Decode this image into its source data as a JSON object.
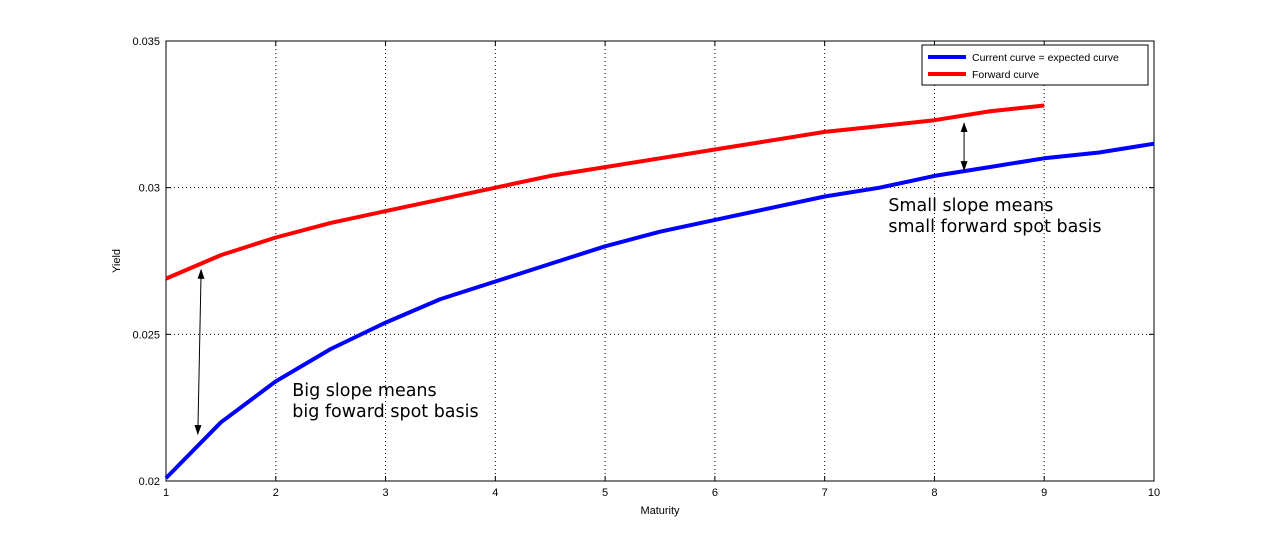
{
  "chart_data": {
    "type": "line",
    "title": "",
    "xlabel": "Maturity",
    "ylabel": "Yield",
    "xlim": [
      1,
      10
    ],
    "ylim": [
      0.02,
      0.035
    ],
    "xticks": [
      1,
      2,
      3,
      4,
      5,
      6,
      7,
      8,
      9,
      10
    ],
    "xtick_labels": [
      "1",
      "2",
      "3",
      "4",
      "5",
      "6",
      "7",
      "8",
      "9",
      "10"
    ],
    "yticks": [
      0.02,
      0.025,
      0.03,
      0.035
    ],
    "ytick_labels": [
      "0.02",
      "0.025",
      "0.03",
      "0.035"
    ],
    "grid": true,
    "legend_position": "top-right",
    "series": [
      {
        "name": "Current curve = expected curve",
        "color": "#0000ff",
        "x": [
          1,
          1.5,
          2,
          2.5,
          3,
          3.5,
          4,
          4.5,
          5,
          5.5,
          6,
          6.5,
          7,
          7.5,
          8,
          8.5,
          9,
          9.5,
          10
        ],
        "y": [
          0.0201,
          0.022,
          0.0234,
          0.0245,
          0.0254,
          0.0262,
          0.0268,
          0.0274,
          0.028,
          0.0285,
          0.0289,
          0.0293,
          0.0297,
          0.03,
          0.0304,
          0.0307,
          0.031,
          0.0312,
          0.0315
        ]
      },
      {
        "name": "Forward curve",
        "color": "#ff0000",
        "x": [
          1,
          1.5,
          2,
          2.5,
          3,
          3.5,
          4,
          4.5,
          5,
          5.5,
          6,
          6.5,
          7,
          7.5,
          8,
          8.5,
          9
        ],
        "y": [
          0.0269,
          0.0277,
          0.0283,
          0.0288,
          0.0292,
          0.0296,
          0.03,
          0.0304,
          0.0307,
          0.031,
          0.0313,
          0.0316,
          0.0319,
          0.0321,
          0.0323,
          0.0326,
          0.0328
        ]
      }
    ],
    "annotations": [
      {
        "lines": [
          "Big slope means",
          "big foward spot basis"
        ],
        "x": 2.15,
        "y": 0.0229,
        "arrow": {
          "x1": 1.32,
          "y1": 0.0272,
          "x2": 1.29,
          "y2": 0.0216
        }
      },
      {
        "lines": [
          "Small slope means",
          "small forward spot basis"
        ],
        "x": 7.58,
        "y": 0.0292,
        "arrow": {
          "x1": 8.27,
          "y1": 0.0322,
          "x2": 8.27,
          "y2": 0.0306
        }
      }
    ]
  }
}
